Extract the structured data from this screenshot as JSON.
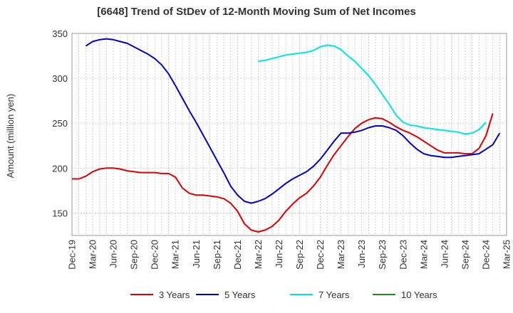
{
  "chart_data": {
    "type": "line",
    "title": "[6648]  Trend of StDev of 12-Month Moving Sum of Net Incomes",
    "ylabel": "Amount (million yen)",
    "xlabel": "",
    "ylim": [
      125,
      350
    ],
    "yticks": [
      150,
      200,
      250,
      300,
      350
    ],
    "xlim": [
      "2019-12",
      "2025-03"
    ],
    "xticks": [
      "Dec-19",
      "Mar-20",
      "Jun-20",
      "Sep-20",
      "Dec-20",
      "Mar-21",
      "Jun-21",
      "Sep-21",
      "Dec-21",
      "Mar-22",
      "Jun-22",
      "Sep-22",
      "Dec-22",
      "Mar-23",
      "Jun-23",
      "Sep-23",
      "Dec-23",
      "Mar-24",
      "Jun-24",
      "Sep-24",
      "Dec-24",
      "Mar-25"
    ],
    "grid": true,
    "legend_position": "bottom",
    "series": [
      {
        "name": "3 Years",
        "color": "#dd0000",
        "points": [
          [
            "2019-12",
            188
          ],
          [
            "2020-01",
            188
          ],
          [
            "2020-02",
            191
          ],
          [
            "2020-03",
            196
          ],
          [
            "2020-04",
            199
          ],
          [
            "2020-05",
            200
          ],
          [
            "2020-06",
            200
          ],
          [
            "2020-07",
            199
          ],
          [
            "2020-08",
            197
          ],
          [
            "2020-09",
            196
          ],
          [
            "2020-10",
            195
          ],
          [
            "2020-11",
            195
          ],
          [
            "2020-12",
            195
          ],
          [
            "2021-01",
            194
          ],
          [
            "2021-02",
            194
          ],
          [
            "2021-03",
            190
          ],
          [
            "2021-04",
            178
          ],
          [
            "2021-05",
            172
          ],
          [
            "2021-06",
            170
          ],
          [
            "2021-07",
            170
          ],
          [
            "2021-08",
            169
          ],
          [
            "2021-09",
            168
          ],
          [
            "2021-10",
            166
          ],
          [
            "2021-11",
            161
          ],
          [
            "2021-12",
            152
          ],
          [
            "2022-01",
            138
          ],
          [
            "2022-02",
            131
          ],
          [
            "2022-03",
            129
          ],
          [
            "2022-04",
            131
          ],
          [
            "2022-05",
            135
          ],
          [
            "2022-06",
            142
          ],
          [
            "2022-07",
            152
          ],
          [
            "2022-08",
            160
          ],
          [
            "2022-09",
            167
          ],
          [
            "2022-10",
            172
          ],
          [
            "2022-11",
            180
          ],
          [
            "2022-12",
            190
          ],
          [
            "2023-01",
            203
          ],
          [
            "2023-02",
            215
          ],
          [
            "2023-03",
            225
          ],
          [
            "2023-04",
            235
          ],
          [
            "2023-05",
            244
          ],
          [
            "2023-06",
            250
          ],
          [
            "2023-07",
            254
          ],
          [
            "2023-08",
            256
          ],
          [
            "2023-09",
            255
          ],
          [
            "2023-10",
            251
          ],
          [
            "2023-11",
            246
          ],
          [
            "2023-12",
            242
          ],
          [
            "2024-01",
            239
          ],
          [
            "2024-02",
            235
          ],
          [
            "2024-03",
            230
          ],
          [
            "2024-04",
            225
          ],
          [
            "2024-05",
            220
          ],
          [
            "2024-06",
            217
          ],
          [
            "2024-07",
            217
          ],
          [
            "2024-08",
            217
          ],
          [
            "2024-09",
            216
          ],
          [
            "2024-10",
            216
          ],
          [
            "2024-11",
            222
          ],
          [
            "2024-12",
            236
          ],
          [
            "2025-01",
            261
          ]
        ]
      },
      {
        "name": "5 Years",
        "color": "#0000cc",
        "points": [
          [
            "2020-02",
            336
          ],
          [
            "2020-03",
            341
          ],
          [
            "2020-04",
            343
          ],
          [
            "2020-05",
            344
          ],
          [
            "2020-06",
            343
          ],
          [
            "2020-07",
            341
          ],
          [
            "2020-08",
            339
          ],
          [
            "2020-09",
            335
          ],
          [
            "2020-10",
            331
          ],
          [
            "2020-11",
            327
          ],
          [
            "2020-12",
            322
          ],
          [
            "2021-01",
            315
          ],
          [
            "2021-02",
            305
          ],
          [
            "2021-03",
            292
          ],
          [
            "2021-04",
            278
          ],
          [
            "2021-05",
            264
          ],
          [
            "2021-06",
            251
          ],
          [
            "2021-07",
            237
          ],
          [
            "2021-08",
            223
          ],
          [
            "2021-09",
            209
          ],
          [
            "2021-10",
            195
          ],
          [
            "2021-11",
            180
          ],
          [
            "2021-12",
            170
          ],
          [
            "2022-01",
            163
          ],
          [
            "2022-02",
            161
          ],
          [
            "2022-03",
            163
          ],
          [
            "2022-04",
            166
          ],
          [
            "2022-05",
            171
          ],
          [
            "2022-06",
            177
          ],
          [
            "2022-07",
            183
          ],
          [
            "2022-08",
            188
          ],
          [
            "2022-09",
            192
          ],
          [
            "2022-10",
            196
          ],
          [
            "2022-11",
            202
          ],
          [
            "2022-12",
            210
          ],
          [
            "2023-01",
            220
          ],
          [
            "2023-02",
            230
          ],
          [
            "2023-03",
            239
          ],
          [
            "2023-04",
            239
          ],
          [
            "2023-05",
            240
          ],
          [
            "2023-06",
            242
          ],
          [
            "2023-07",
            245
          ],
          [
            "2023-08",
            247
          ],
          [
            "2023-09",
            247
          ],
          [
            "2023-10",
            245
          ],
          [
            "2023-11",
            242
          ],
          [
            "2023-12",
            236
          ],
          [
            "2024-01",
            228
          ],
          [
            "2024-02",
            221
          ],
          [
            "2024-03",
            216
          ],
          [
            "2024-04",
            214
          ],
          [
            "2024-05",
            213
          ],
          [
            "2024-06",
            212
          ],
          [
            "2024-07",
            212
          ],
          [
            "2024-08",
            213
          ],
          [
            "2024-09",
            214
          ],
          [
            "2024-10",
            215
          ],
          [
            "2024-11",
            216
          ],
          [
            "2024-12",
            221
          ],
          [
            "2025-01",
            226
          ],
          [
            "2025-02",
            239
          ]
        ]
      },
      {
        "name": "7 Years",
        "color": "#00e5e5",
        "points": [
          [
            "2022-03",
            319
          ],
          [
            "2022-04",
            320
          ],
          [
            "2022-05",
            322
          ],
          [
            "2022-06",
            324
          ],
          [
            "2022-07",
            326
          ],
          [
            "2022-08",
            327
          ],
          [
            "2022-09",
            328
          ],
          [
            "2022-10",
            329
          ],
          [
            "2022-11",
            331
          ],
          [
            "2022-12",
            335
          ],
          [
            "2023-01",
            337
          ],
          [
            "2023-02",
            336
          ],
          [
            "2023-03",
            332
          ],
          [
            "2023-04",
            325
          ],
          [
            "2023-05",
            319
          ],
          [
            "2023-06",
            311
          ],
          [
            "2023-07",
            303
          ],
          [
            "2023-08",
            293
          ],
          [
            "2023-09",
            282
          ],
          [
            "2023-10",
            271
          ],
          [
            "2023-11",
            259
          ],
          [
            "2023-12",
            251
          ],
          [
            "2024-01",
            248
          ],
          [
            "2024-02",
            247
          ],
          [
            "2024-03",
            245
          ],
          [
            "2024-04",
            244
          ],
          [
            "2024-05",
            243
          ],
          [
            "2024-06",
            242
          ],
          [
            "2024-07",
            241
          ],
          [
            "2024-08",
            240
          ],
          [
            "2024-09",
            238
          ],
          [
            "2024-10",
            239
          ],
          [
            "2024-11",
            243
          ],
          [
            "2024-12",
            251
          ]
        ]
      },
      {
        "name": "10 Years",
        "color": "#228b22",
        "points": []
      }
    ]
  }
}
